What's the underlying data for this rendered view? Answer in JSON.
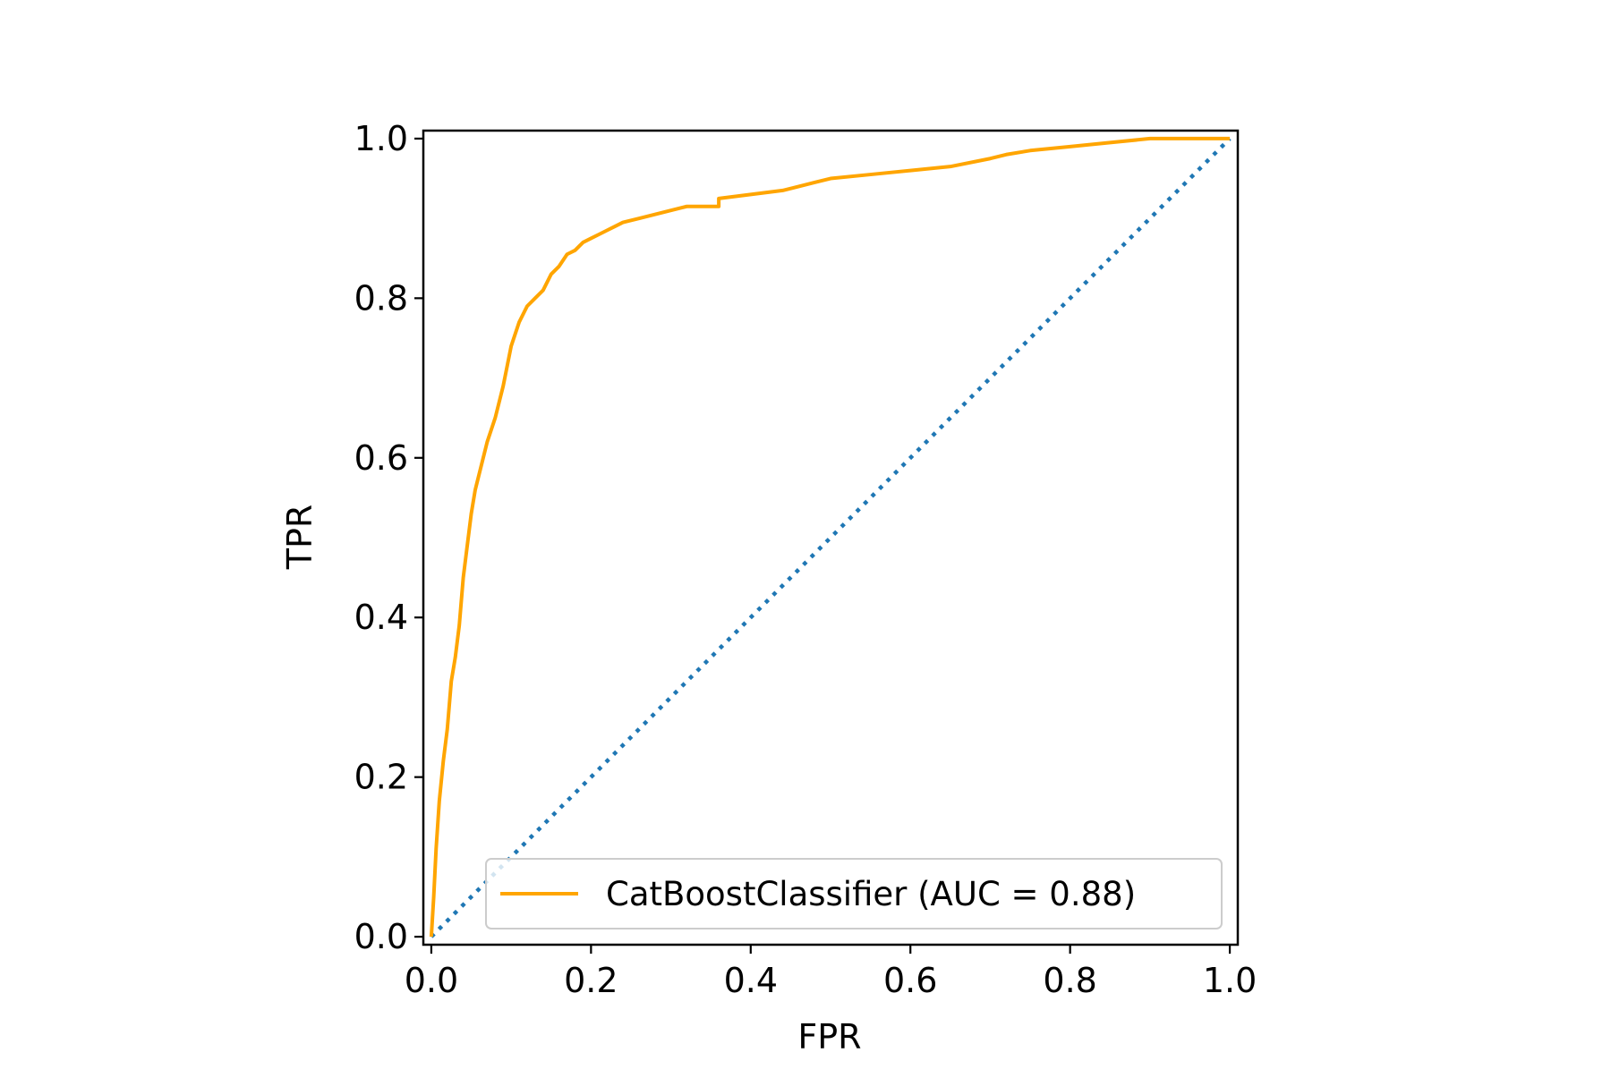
{
  "chart_data": {
    "type": "line",
    "xlabel": "FPR",
    "ylabel": "TPR",
    "xlim": [
      -0.01,
      1.01
    ],
    "ylim": [
      -0.01,
      1.01
    ],
    "xticks": [
      0.0,
      0.2,
      0.4,
      0.6,
      0.8,
      1.0
    ],
    "yticks": [
      0.0,
      0.2,
      0.4,
      0.6,
      0.8,
      1.0
    ],
    "xtick_labels": [
      "0.0",
      "0.2",
      "0.4",
      "0.6",
      "0.8",
      "1.0"
    ],
    "ytick_labels": [
      "0.0",
      "0.2",
      "0.4",
      "0.6",
      "0.8",
      "1.0"
    ],
    "grid": false,
    "legend_position": "lower right",
    "series": [
      {
        "name": "CatBoostClassifier (AUC = 0.88)",
        "color": "#ffa500",
        "style": "solid",
        "x": [
          0.0,
          0.003,
          0.006,
          0.01,
          0.015,
          0.02,
          0.025,
          0.03,
          0.035,
          0.04,
          0.045,
          0.05,
          0.055,
          0.06,
          0.065,
          0.07,
          0.08,
          0.09,
          0.1,
          0.11,
          0.12,
          0.13,
          0.14,
          0.15,
          0.16,
          0.17,
          0.18,
          0.19,
          0.2,
          0.21,
          0.22,
          0.23,
          0.24,
          0.26,
          0.28,
          0.3,
          0.32,
          0.34,
          0.36,
          0.36,
          0.4,
          0.44,
          0.48,
          0.5,
          0.55,
          0.6,
          0.65,
          0.7,
          0.72,
          0.75,
          0.8,
          0.85,
          0.9,
          0.95,
          1.0
        ],
        "y": [
          0.0,
          0.05,
          0.11,
          0.17,
          0.22,
          0.26,
          0.32,
          0.35,
          0.39,
          0.45,
          0.49,
          0.53,
          0.56,
          0.58,
          0.6,
          0.62,
          0.65,
          0.69,
          0.74,
          0.77,
          0.79,
          0.8,
          0.81,
          0.83,
          0.84,
          0.855,
          0.86,
          0.87,
          0.875,
          0.88,
          0.885,
          0.89,
          0.895,
          0.9,
          0.905,
          0.91,
          0.915,
          0.915,
          0.915,
          0.925,
          0.93,
          0.935,
          0.945,
          0.95,
          0.955,
          0.96,
          0.965,
          0.975,
          0.98,
          0.985,
          0.99,
          0.995,
          1.0,
          1.0,
          1.0
        ]
      },
      {
        "name": "",
        "color": "#1f77b4",
        "style": "dotted",
        "x": [
          0.0,
          1.0
        ],
        "y": [
          0.0,
          1.0
        ]
      }
    ]
  }
}
